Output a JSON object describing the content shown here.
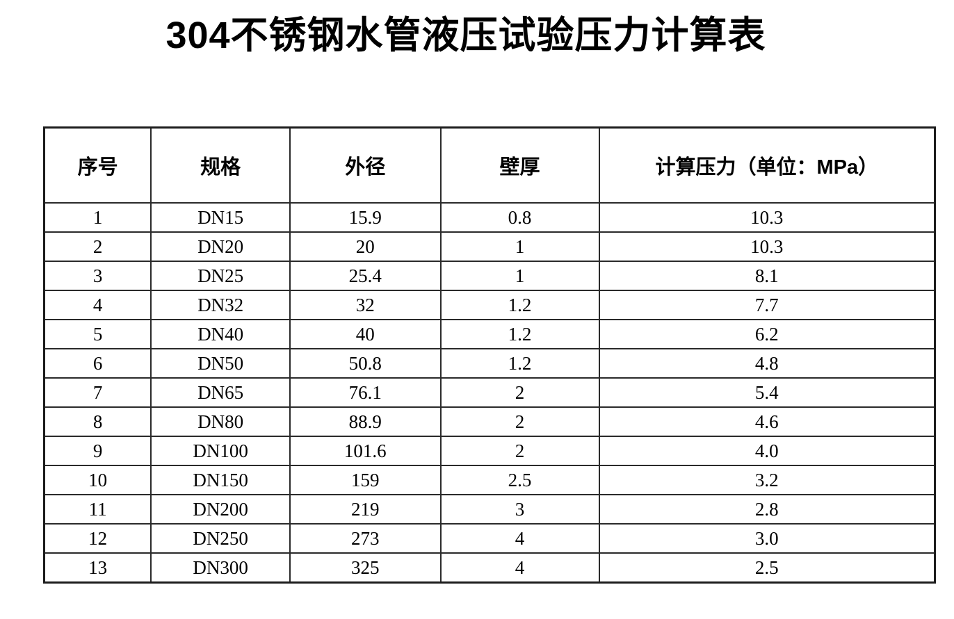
{
  "title": "304不锈钢水管液压试验压力计算表",
  "table": {
    "columns": [
      "序号",
      "规格",
      "外径",
      "壁厚",
      "计算压力（单位：MPa）"
    ],
    "rows": [
      [
        "1",
        "DN15",
        "15.9",
        "0.8",
        "10.3"
      ],
      [
        "2",
        "DN20",
        "20",
        "1",
        "10.3"
      ],
      [
        "3",
        "DN25",
        "25.4",
        "1",
        "8.1"
      ],
      [
        "4",
        "DN32",
        "32",
        "1.2",
        "7.7"
      ],
      [
        "5",
        "DN40",
        "40",
        "1.2",
        "6.2"
      ],
      [
        "6",
        "DN50",
        "50.8",
        "1.2",
        "4.8"
      ],
      [
        "7",
        "DN65",
        "76.1",
        "2",
        "5.4"
      ],
      [
        "8",
        "DN80",
        "88.9",
        "2",
        "4.6"
      ],
      [
        "9",
        "DN100",
        "101.6",
        "2",
        "4.0"
      ],
      [
        "10",
        "DN150",
        "159",
        "2.5",
        "3.2"
      ],
      [
        "11",
        "DN200",
        "219",
        "3",
        "2.8"
      ],
      [
        "12",
        "DN250",
        "273",
        "4",
        "3.0"
      ],
      [
        "13",
        "DN300",
        "325",
        "4",
        "2.5"
      ]
    ]
  }
}
